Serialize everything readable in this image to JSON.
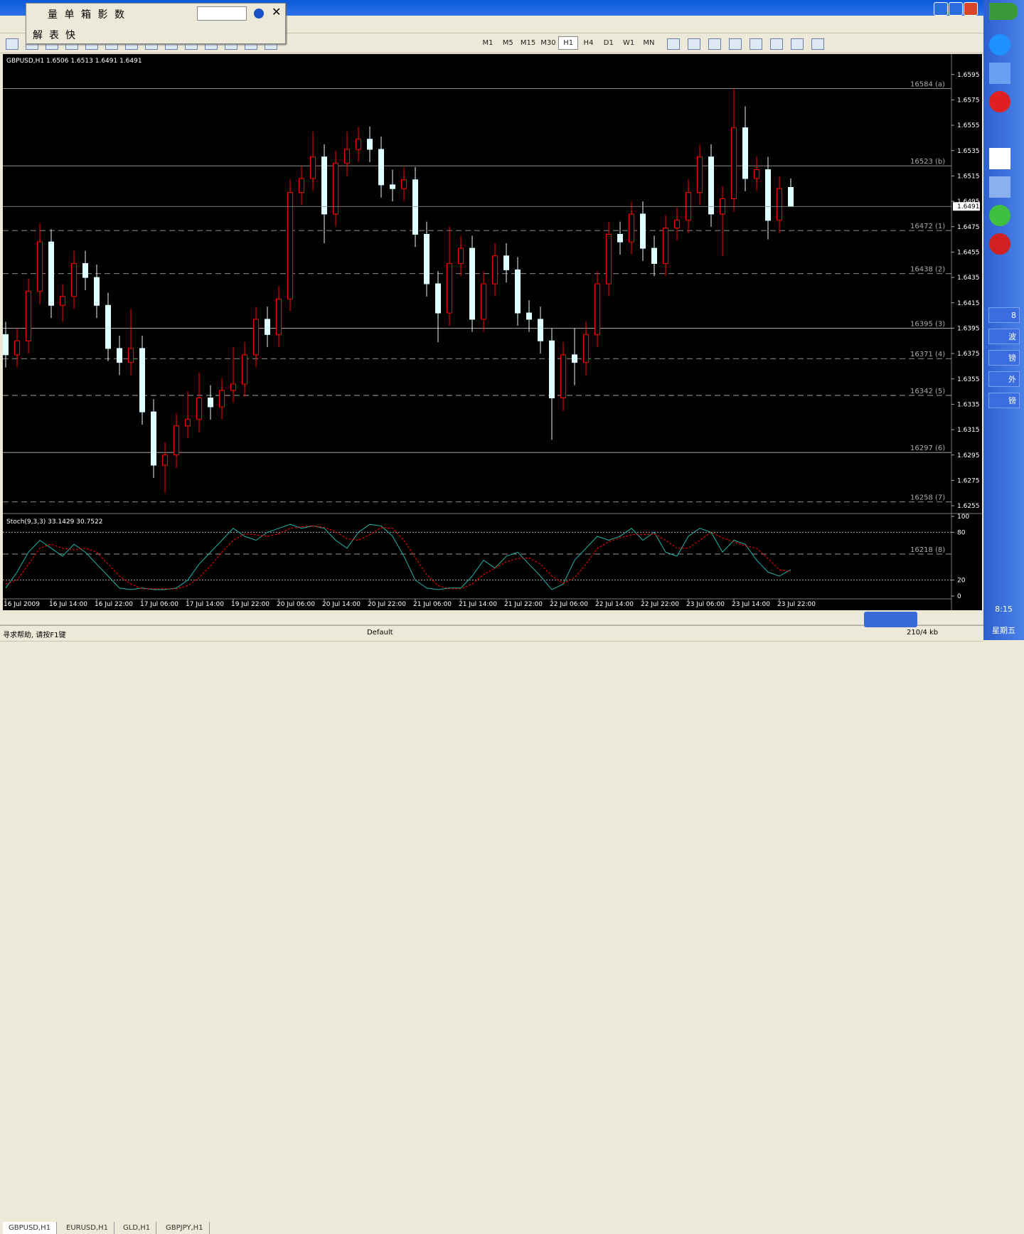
{
  "window": {
    "timeframes": [
      "M1",
      "M5",
      "M15",
      "M30",
      "H1",
      "H4",
      "D1",
      "W1",
      "MN"
    ],
    "float_row1": [
      "量",
      "单",
      "箱",
      "影",
      "数"
    ],
    "float_row2": [
      "解",
      "表",
      "快"
    ],
    "tabs": [
      "GBPUSD,H1",
      "EURUSD,H1",
      "GLD,H1",
      "GBPJPY,H1"
    ],
    "status": {
      "help": "寻求帮助, 请按F1键",
      "profile": "Default",
      "traffic": "210/4 kb"
    },
    "tray": {
      "time": "8:15",
      "day": "星期五",
      "items": [
        "8",
        "波",
        "镑",
        "外",
        "镑"
      ]
    }
  },
  "chart_data": [
    {
      "type": "candlestick",
      "title": "GBPUSD,H1  1.6506 1.6513 1.6491 1.6491",
      "categories": [
        "16 Jul 2009",
        null,
        null,
        null,
        "16 Jul 14:00",
        null,
        null,
        null,
        "16 Jul 22:00",
        null,
        null,
        null,
        "17 Jul 06:00",
        null,
        null,
        null,
        "17 Jul 14:00",
        null,
        null,
        null,
        "19 Jul 22:00",
        null,
        null,
        null,
        "20 Jul 06:00",
        null,
        null,
        null,
        "20 Jul 14:00",
        null,
        null,
        null,
        "20 Jul 22:00",
        null,
        null,
        null,
        "21 Jul 06:00",
        null,
        null,
        null,
        "21 Jul 14:00",
        null,
        null,
        null,
        "21 Jul 22:00",
        null,
        null,
        null,
        "22 Jul 06:00",
        null,
        null,
        null,
        "22 Jul 14:00",
        null,
        null,
        null,
        "22 Jul 22:00",
        null,
        null,
        null,
        "23 Jul 06:00",
        null,
        null,
        null,
        "23 Jul 14:00",
        null,
        null,
        null,
        "23 Jul 22:00",
        null
      ],
      "open": [
        1.639,
        1.6374,
        1.6385,
        1.6424,
        1.6463,
        1.6413,
        1.642,
        1.6446,
        1.6435,
        1.6413,
        1.6379,
        1.6368,
        1.6379,
        1.6329,
        1.6287,
        1.6295,
        1.6318,
        1.6323,
        1.634,
        1.6333,
        1.6346,
        1.6351,
        1.6374,
        1.6402,
        1.639,
        1.6418,
        1.6502,
        1.6513,
        1.653,
        1.6485,
        1.6525,
        1.6536,
        1.6544,
        1.6536,
        1.6508,
        1.6505,
        1.6512,
        1.6469,
        1.643,
        1.6407,
        1.6446,
        1.6458,
        1.6402,
        1.643,
        1.6452,
        1.6441,
        1.6407,
        1.6402,
        1.6385,
        1.634,
        1.6374,
        1.6368,
        1.639,
        1.643,
        1.6469,
        1.6463,
        1.6485,
        1.6458,
        1.6446,
        1.6474,
        1.648,
        1.6502,
        1.653,
        1.6485,
        1.6497,
        1.6553,
        1.6513,
        1.652,
        1.648,
        1.6506
      ],
      "high": [
        1.64,
        1.6395,
        1.6434,
        1.6478,
        1.6473,
        1.643,
        1.6456,
        1.6456,
        1.6445,
        1.6423,
        1.6389,
        1.641,
        1.6389,
        1.6339,
        1.6305,
        1.6328,
        1.6345,
        1.636,
        1.635,
        1.6356,
        1.638,
        1.6384,
        1.6412,
        1.6412,
        1.6428,
        1.6512,
        1.6523,
        1.655,
        1.654,
        1.6535,
        1.655,
        1.6554,
        1.6554,
        1.6546,
        1.652,
        1.6522,
        1.6522,
        1.6479,
        1.644,
        1.6475,
        1.6468,
        1.6468,
        1.644,
        1.6462,
        1.6462,
        1.6451,
        1.6417,
        1.6412,
        1.6395,
        1.6384,
        1.6395,
        1.64,
        1.644,
        1.6479,
        1.6479,
        1.6495,
        1.6495,
        1.6468,
        1.6484,
        1.649,
        1.6512,
        1.654,
        1.654,
        1.6507,
        1.6584,
        1.657,
        1.653,
        1.653,
        1.6515,
        1.6513
      ],
      "low": [
        1.6364,
        1.6364,
        1.6375,
        1.6414,
        1.6403,
        1.64,
        1.641,
        1.6425,
        1.6403,
        1.6369,
        1.6358,
        1.6358,
        1.6319,
        1.6277,
        1.6265,
        1.6285,
        1.6308,
        1.6313,
        1.6323,
        1.6323,
        1.6336,
        1.6341,
        1.6364,
        1.638,
        1.638,
        1.6408,
        1.6492,
        1.6503,
        1.6462,
        1.6475,
        1.6515,
        1.6526,
        1.6526,
        1.6498,
        1.6495,
        1.6495,
        1.6459,
        1.642,
        1.6384,
        1.6397,
        1.6436,
        1.6392,
        1.6392,
        1.642,
        1.6431,
        1.6397,
        1.6392,
        1.6375,
        1.6307,
        1.633,
        1.635,
        1.6358,
        1.638,
        1.642,
        1.6453,
        1.6453,
        1.6448,
        1.6436,
        1.6436,
        1.6464,
        1.647,
        1.6492,
        1.6475,
        1.6452,
        1.6487,
        1.6503,
        1.6503,
        1.6465,
        1.647,
        1.6491
      ],
      "close": [
        1.6374,
        1.6385,
        1.6424,
        1.6463,
        1.6413,
        1.642,
        1.6446,
        1.6435,
        1.6413,
        1.6379,
        1.6368,
        1.6379,
        1.6329,
        1.6287,
        1.6295,
        1.6318,
        1.6323,
        1.634,
        1.6333,
        1.6346,
        1.6351,
        1.6374,
        1.6402,
        1.639,
        1.6418,
        1.6502,
        1.6513,
        1.653,
        1.6485,
        1.6525,
        1.6536,
        1.6544,
        1.6536,
        1.6508,
        1.6505,
        1.6512,
        1.6469,
        1.643,
        1.6407,
        1.6446,
        1.6458,
        1.6402,
        1.643,
        1.6452,
        1.6441,
        1.6407,
        1.6402,
        1.6385,
        1.634,
        1.6374,
        1.6368,
        1.639,
        1.643,
        1.6469,
        1.6463,
        1.6485,
        1.6458,
        1.6446,
        1.6474,
        1.648,
        1.6502,
        1.653,
        1.6485,
        1.6497,
        1.6553,
        1.6513,
        1.652,
        1.648,
        1.6505,
        1.6491
      ],
      "up_color": "#ff0000",
      "down_color": "#e0ffff",
      "ylim": [
        1.625,
        1.661
      ],
      "yticks": [
        1.6595,
        1.6575,
        1.6555,
        1.6535,
        1.6515,
        1.6495,
        1.6475,
        1.6455,
        1.6435,
        1.6415,
        1.6395,
        1.6375,
        1.6355,
        1.6335,
        1.6315,
        1.6295,
        1.6275,
        1.6255
      ],
      "levels": [
        {
          "value": 1.6584,
          "label": "16584 (a)",
          "dashed": false
        },
        {
          "value": 1.6523,
          "label": "16523 (b)",
          "dashed": false
        },
        {
          "value": 1.6472,
          "label": "16472 (1)",
          "dashed": true
        },
        {
          "value": 1.6438,
          "label": "16438 (2)",
          "dashed": true
        },
        {
          "value": 1.6395,
          "label": "16395 (3)",
          "dashed": false
        },
        {
          "value": 1.6371,
          "label": "16371 (4)",
          "dashed": true
        },
        {
          "value": 1.6342,
          "label": "16342 (5)",
          "dashed": true
        },
        {
          "value": 1.6297,
          "label": "16297 (6)",
          "dashed": false
        },
        {
          "value": 1.6258,
          "label": "16258 (7)",
          "dashed": true
        }
      ],
      "current_price_line": true
    },
    {
      "type": "line",
      "title": "Stoch(9,3,3) 33.1429 30.7522",
      "series": [
        {
          "color": "#20b2aa",
          "dashed": false,
          "values": [
            10,
            30,
            55,
            70,
            60,
            50,
            65,
            55,
            40,
            25,
            10,
            8,
            10,
            8,
            8,
            10,
            20,
            40,
            55,
            70,
            85,
            75,
            70,
            80,
            85,
            90,
            85,
            88,
            85,
            70,
            60,
            80,
            90,
            88,
            75,
            50,
            20,
            10,
            8,
            10,
            10,
            25,
            45,
            35,
            50,
            55,
            40,
            25,
            8,
            15,
            45,
            60,
            75,
            70,
            75,
            85,
            70,
            80,
            55,
            50,
            75,
            85,
            80,
            55,
            70,
            65,
            45,
            30,
            25,
            33.1429
          ]
        },
        {
          "color": "#ff0000",
          "dashed": true,
          "values": [
            15,
            20,
            40,
            60,
            65,
            60,
            58,
            60,
            55,
            40,
            25,
            15,
            9,
            9,
            9,
            9,
            13,
            23,
            38,
            55,
            70,
            78,
            77,
            75,
            78,
            85,
            87,
            88,
            86,
            81,
            72,
            70,
            77,
            86,
            85,
            70,
            48,
            27,
            13,
            9,
            9,
            15,
            27,
            35,
            43,
            47,
            48,
            40,
            25,
            16,
            23,
            40,
            60,
            68,
            73,
            77,
            77,
            78,
            70,
            60,
            60,
            70,
            80,
            73,
            68,
            63,
            60,
            47,
            33,
            30.7522
          ]
        }
      ],
      "ylim": [
        0,
        100
      ],
      "yticks": [
        100,
        80,
        20,
        0
      ],
      "annotation": "16218 (8)"
    }
  ]
}
